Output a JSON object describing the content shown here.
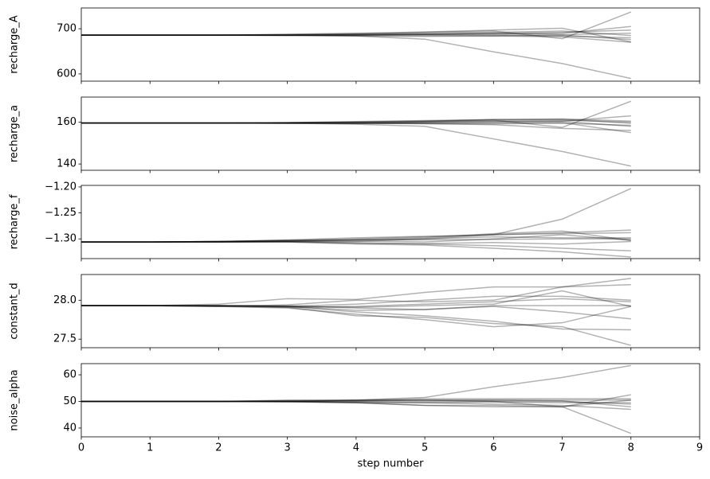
{
  "chart_data": [
    {
      "type": "line",
      "y_label": "recharge_A",
      "x": [
        0,
        1,
        2,
        3,
        4,
        5,
        6,
        7,
        8
      ],
      "xlim": [
        0,
        9
      ],
      "xticks": [
        0,
        1,
        2,
        3,
        4,
        5,
        6,
        7,
        8,
        9
      ],
      "ylim": [
        584,
        746
      ],
      "yticks": [
        600,
        700
      ],
      "line_alpha": 0.3,
      "series": [
        {
          "color": "#000000",
          "values": [
            686,
            686,
            686,
            686,
            684,
            677,
            649,
            623,
            590
          ]
        },
        {
          "color": "#000000",
          "values": [
            686,
            686,
            686,
            688,
            690,
            693,
            697,
            701,
            671
          ]
        },
        {
          "color": "#000000",
          "values": [
            686,
            686,
            686,
            686,
            688,
            692,
            695,
            678,
            737
          ]
        },
        {
          "color": "#000000",
          "values": [
            686,
            686,
            686,
            685,
            686,
            687,
            688,
            690,
            705
          ]
        },
        {
          "color": "#000000",
          "values": [
            686,
            686,
            686,
            686,
            687,
            688,
            690,
            692,
            697
          ]
        },
        {
          "color": "#000000",
          "values": [
            686,
            686,
            686,
            686,
            685,
            685,
            684,
            682,
            670
          ]
        },
        {
          "color": "#000000",
          "values": [
            686,
            686,
            686,
            687,
            689,
            690,
            692,
            695,
            685
          ]
        },
        {
          "color": "#000000",
          "values": [
            686,
            686,
            686,
            686,
            686,
            687,
            686,
            684,
            680
          ]
        },
        {
          "color": "#000000",
          "values": [
            686,
            686,
            686,
            686,
            687,
            688,
            690,
            687,
            690
          ]
        },
        {
          "color": "#000000",
          "values": [
            686,
            686,
            686,
            685,
            684,
            683,
            684,
            686,
            676
          ]
        }
      ]
    },
    {
      "type": "line",
      "y_label": "recharge_a",
      "x": [
        0,
        1,
        2,
        3,
        4,
        5,
        6,
        7,
        8
      ],
      "xlim": [
        0,
        9
      ],
      "xticks": [
        0,
        1,
        2,
        3,
        4,
        5,
        6,
        7,
        8,
        9
      ],
      "ylim": [
        137,
        172
      ],
      "yticks": [
        140,
        160
      ],
      "line_alpha": 0.3,
      "series": [
        {
          "color": "#000000",
          "values": [
            159.6,
            159.6,
            159.6,
            159.5,
            159,
            158,
            152,
            146,
            139
          ]
        },
        {
          "color": "#000000",
          "values": [
            159.6,
            159.6,
            159.6,
            159.8,
            160.3,
            160.8,
            161.2,
            161.6,
            160.5
          ]
        },
        {
          "color": "#000000",
          "values": [
            159.6,
            159.6,
            159.6,
            159.8,
            160.1,
            160.5,
            161,
            157.5,
            170
          ]
        },
        {
          "color": "#000000",
          "values": [
            159.6,
            159.6,
            159.6,
            159.6,
            159.7,
            160,
            160.2,
            160.5,
            163
          ]
        },
        {
          "color": "#000000",
          "values": [
            159.6,
            159.6,
            159.6,
            159.5,
            159.4,
            159.5,
            159.6,
            159.8,
            155
          ]
        },
        {
          "color": "#000000",
          "values": [
            159.6,
            159.6,
            159.6,
            159.8,
            160,
            160.5,
            161.3,
            161.3,
            159.5
          ]
        },
        {
          "color": "#000000",
          "values": [
            159.6,
            159.6,
            159.6,
            159.6,
            159.7,
            159.9,
            160.2,
            160.4,
            158
          ]
        },
        {
          "color": "#000000",
          "values": [
            159.6,
            159.6,
            159.6,
            159.5,
            159.4,
            159.3,
            159.2,
            159.5,
            158.5
          ]
        },
        {
          "color": "#000000",
          "values": [
            159.6,
            159.6,
            159.6,
            159.6,
            159.8,
            160.2,
            160.8,
            161,
            160
          ]
        },
        {
          "color": "#000000",
          "values": [
            159.6,
            159.6,
            159.6,
            159.5,
            159.4,
            159.3,
            158.8,
            157,
            156
          ]
        }
      ]
    },
    {
      "type": "line",
      "y_label": "recharge_f",
      "x": [
        0,
        1,
        2,
        3,
        4,
        5,
        6,
        7,
        8
      ],
      "xlim": [
        0,
        9
      ],
      "xticks": [
        0,
        1,
        2,
        3,
        4,
        5,
        6,
        7,
        8,
        9
      ],
      "ylim": [
        -1.338,
        -1.197
      ],
      "yticks": [
        {
          "value": -1.3,
          "label": "−1.30"
        },
        {
          "value": -1.25,
          "label": "−1.25"
        },
        {
          "value": -1.2,
          "label": "−1.20"
        }
      ],
      "line_alpha": 0.3,
      "series": [
        {
          "color": "#000000",
          "values": [
            -1.306,
            -1.306,
            -1.305,
            -1.304,
            -1.302,
            -1.3,
            -1.292,
            -1.262,
            -1.203
          ]
        },
        {
          "color": "#000000",
          "values": [
            -1.306,
            -1.306,
            -1.305,
            -1.303,
            -1.3,
            -1.296,
            -1.292,
            -1.288,
            -1.283
          ]
        },
        {
          "color": "#000000",
          "values": [
            -1.306,
            -1.306,
            -1.306,
            -1.306,
            -1.31,
            -1.312,
            -1.318,
            -1.325,
            -1.335
          ]
        },
        {
          "color": "#000000",
          "values": [
            -1.306,
            -1.306,
            -1.305,
            -1.304,
            -1.302,
            -1.298,
            -1.29,
            -1.285,
            -1.303
          ]
        },
        {
          "color": "#000000",
          "values": [
            -1.306,
            -1.306,
            -1.306,
            -1.305,
            -1.308,
            -1.31,
            -1.313,
            -1.318,
            -1.323
          ]
        },
        {
          "color": "#000000",
          "values": [
            -1.306,
            -1.306,
            -1.305,
            -1.302,
            -1.298,
            -1.295,
            -1.292,
            -1.29,
            -1.288
          ]
        },
        {
          "color": "#000000",
          "values": [
            -1.306,
            -1.306,
            -1.306,
            -1.305,
            -1.304,
            -1.306,
            -1.3,
            -1.292,
            -1.303
          ]
        },
        {
          "color": "#000000",
          "values": [
            -1.306,
            -1.306,
            -1.305,
            -1.303,
            -1.302,
            -1.302,
            -1.301,
            -1.3,
            -1.3
          ]
        },
        {
          "color": "#000000",
          "values": [
            -1.306,
            -1.306,
            -1.306,
            -1.306,
            -1.308,
            -1.309,
            -1.307,
            -1.31,
            -1.305
          ]
        },
        {
          "color": "#000000",
          "values": [
            -1.306,
            -1.306,
            -1.306,
            -1.305,
            -1.305,
            -1.3,
            -1.296,
            -1.298,
            -1.298
          ]
        }
      ]
    },
    {
      "type": "line",
      "y_label": "constant_d",
      "x": [
        0,
        1,
        2,
        3,
        4,
        5,
        6,
        7,
        8
      ],
      "xlim": [
        0,
        9
      ],
      "xticks": [
        0,
        1,
        2,
        3,
        4,
        5,
        6,
        7,
        8,
        9
      ],
      "ylim": [
        27.39,
        28.33
      ],
      "yticks": [
        27.5,
        {
          "value": 28,
          "label": "28.0"
        }
      ],
      "line_alpha": 0.3,
      "series": [
        {
          "color": "#000000",
          "values": [
            27.93,
            27.93,
            27.95,
            28.02,
            28.01,
            28.1,
            28.17,
            28.17,
            28.2
          ]
        },
        {
          "color": "#000000",
          "values": [
            27.93,
            27.93,
            27.92,
            27.9,
            27.82,
            27.75,
            27.66,
            27.71,
            27.92
          ]
        },
        {
          "color": "#000000",
          "values": [
            27.93,
            27.93,
            27.92,
            27.94,
            28,
            27.98,
            28,
            28.17,
            28.28
          ]
        },
        {
          "color": "#000000",
          "values": [
            27.93,
            27.93,
            27.93,
            27.92,
            27.91,
            27.93,
            27.95,
            28.12,
            27.92
          ]
        },
        {
          "color": "#000000",
          "values": [
            27.93,
            27.93,
            27.93,
            27.92,
            27.85,
            27.8,
            27.73,
            27.63,
            27.62
          ]
        },
        {
          "color": "#000000",
          "values": [
            27.93,
            27.93,
            27.93,
            27.93,
            27.9,
            27.88,
            27.92,
            27.85,
            27.76
          ]
        },
        {
          "color": "#000000",
          "values": [
            27.93,
            27.93,
            27.92,
            27.91,
            27.8,
            27.78,
            27.7,
            27.66,
            27.42
          ]
        },
        {
          "color": "#000000",
          "values": [
            27.93,
            27.93,
            27.93,
            27.92,
            27.95,
            28,
            28.05,
            28.05,
            28
          ]
        },
        {
          "color": "#000000",
          "values": [
            27.93,
            27.93,
            27.93,
            27.92,
            27.87,
            27.88,
            27.93,
            27.93,
            27.93
          ]
        },
        {
          "color": "#000000",
          "values": [
            27.93,
            27.93,
            27.93,
            27.91,
            27.92,
            27.95,
            27.98,
            28.02,
            27.98
          ]
        }
      ]
    },
    {
      "type": "line",
      "y_label": "noise_alpha",
      "x_label": "step number",
      "x": [
        0,
        1,
        2,
        3,
        4,
        5,
        6,
        7,
        8
      ],
      "xlim": [
        0,
        9
      ],
      "xticks": [
        0,
        1,
        2,
        3,
        4,
        5,
        6,
        7,
        8,
        9
      ],
      "ylim": [
        36.7,
        64.2
      ],
      "yticks": [
        40,
        50,
        60
      ],
      "line_alpha": 0.3,
      "series": [
        {
          "color": "#000000",
          "values": [
            50,
            50,
            50,
            50,
            50.5,
            51.5,
            55.5,
            59,
            63.5
          ]
        },
        {
          "color": "#000000",
          "values": [
            50,
            50,
            50,
            50,
            49.5,
            48.5,
            48,
            48,
            38
          ]
        },
        {
          "color": "#000000",
          "values": [
            50,
            50,
            50,
            50.5,
            50.5,
            50.5,
            50,
            48,
            52.5
          ]
        },
        {
          "color": "#000000",
          "values": [
            50,
            50,
            50,
            50,
            49.8,
            49.5,
            49,
            48.5,
            47
          ]
        },
        {
          "color": "#000000",
          "values": [
            50,
            50,
            50,
            50.3,
            50.5,
            51,
            51,
            51,
            51
          ]
        },
        {
          "color": "#000000",
          "values": [
            50,
            50,
            50,
            50,
            50,
            50,
            50,
            50,
            49
          ]
        },
        {
          "color": "#000000",
          "values": [
            50,
            50,
            50,
            49.8,
            49.5,
            48.5,
            48.5,
            48,
            50.5
          ]
        },
        {
          "color": "#000000",
          "values": [
            50,
            50,
            50,
            50.2,
            50.2,
            50.5,
            50.5,
            50.2,
            48
          ]
        },
        {
          "color": "#000000",
          "values": [
            50,
            50,
            50,
            50,
            50.3,
            50.5,
            50.5,
            50.5,
            50.5
          ]
        },
        {
          "color": "#000000",
          "values": [
            50,
            50,
            50,
            49.9,
            49.5,
            49.5,
            49.8,
            49.5,
            49.5
          ]
        }
      ]
    }
  ]
}
